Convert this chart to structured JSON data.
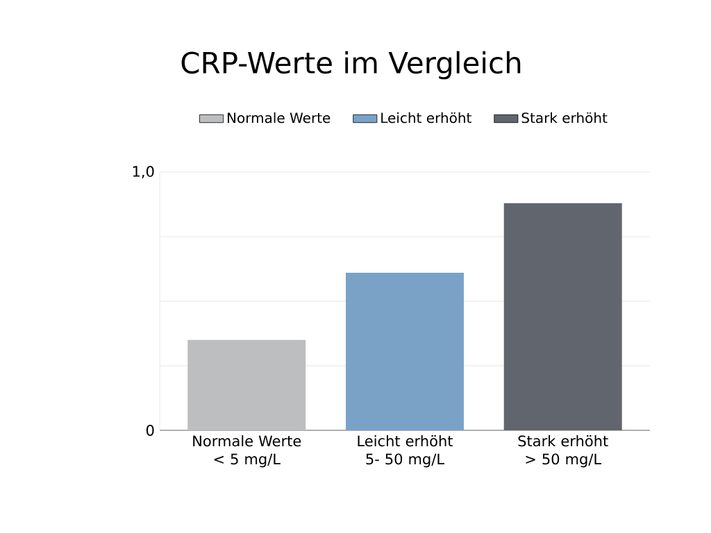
{
  "chart_data": {
    "type": "bar",
    "title": "CRP-Werte im Vergleich",
    "categories": [
      "Normale Werte < 5 mg/L",
      "Leicht erhöht 5- 50 mg/L",
      "Stark erhöht > 50 mg/L"
    ],
    "series": [
      {
        "name": "Normale Werte",
        "color": "#bdbebf",
        "values": [
          0.35,
          null,
          null
        ]
      },
      {
        "name": "Leicht erhöht",
        "color": "#7aa2c7",
        "values": [
          null,
          0.61,
          null
        ]
      },
      {
        "name": "Stark erhöht",
        "color": "#61656e",
        "values": [
          null,
          null,
          0.88
        ]
      }
    ],
    "ylim": [
      0,
      1
    ],
    "yticks": [
      {
        "value": 0,
        "label": "0"
      },
      {
        "value": 0.25,
        "label": null
      },
      {
        "value": 0.5,
        "label": null
      },
      {
        "value": 0.75,
        "label": null
      },
      {
        "value": 1,
        "label": "1,0"
      }
    ],
    "grid": "y",
    "legend": "top"
  }
}
